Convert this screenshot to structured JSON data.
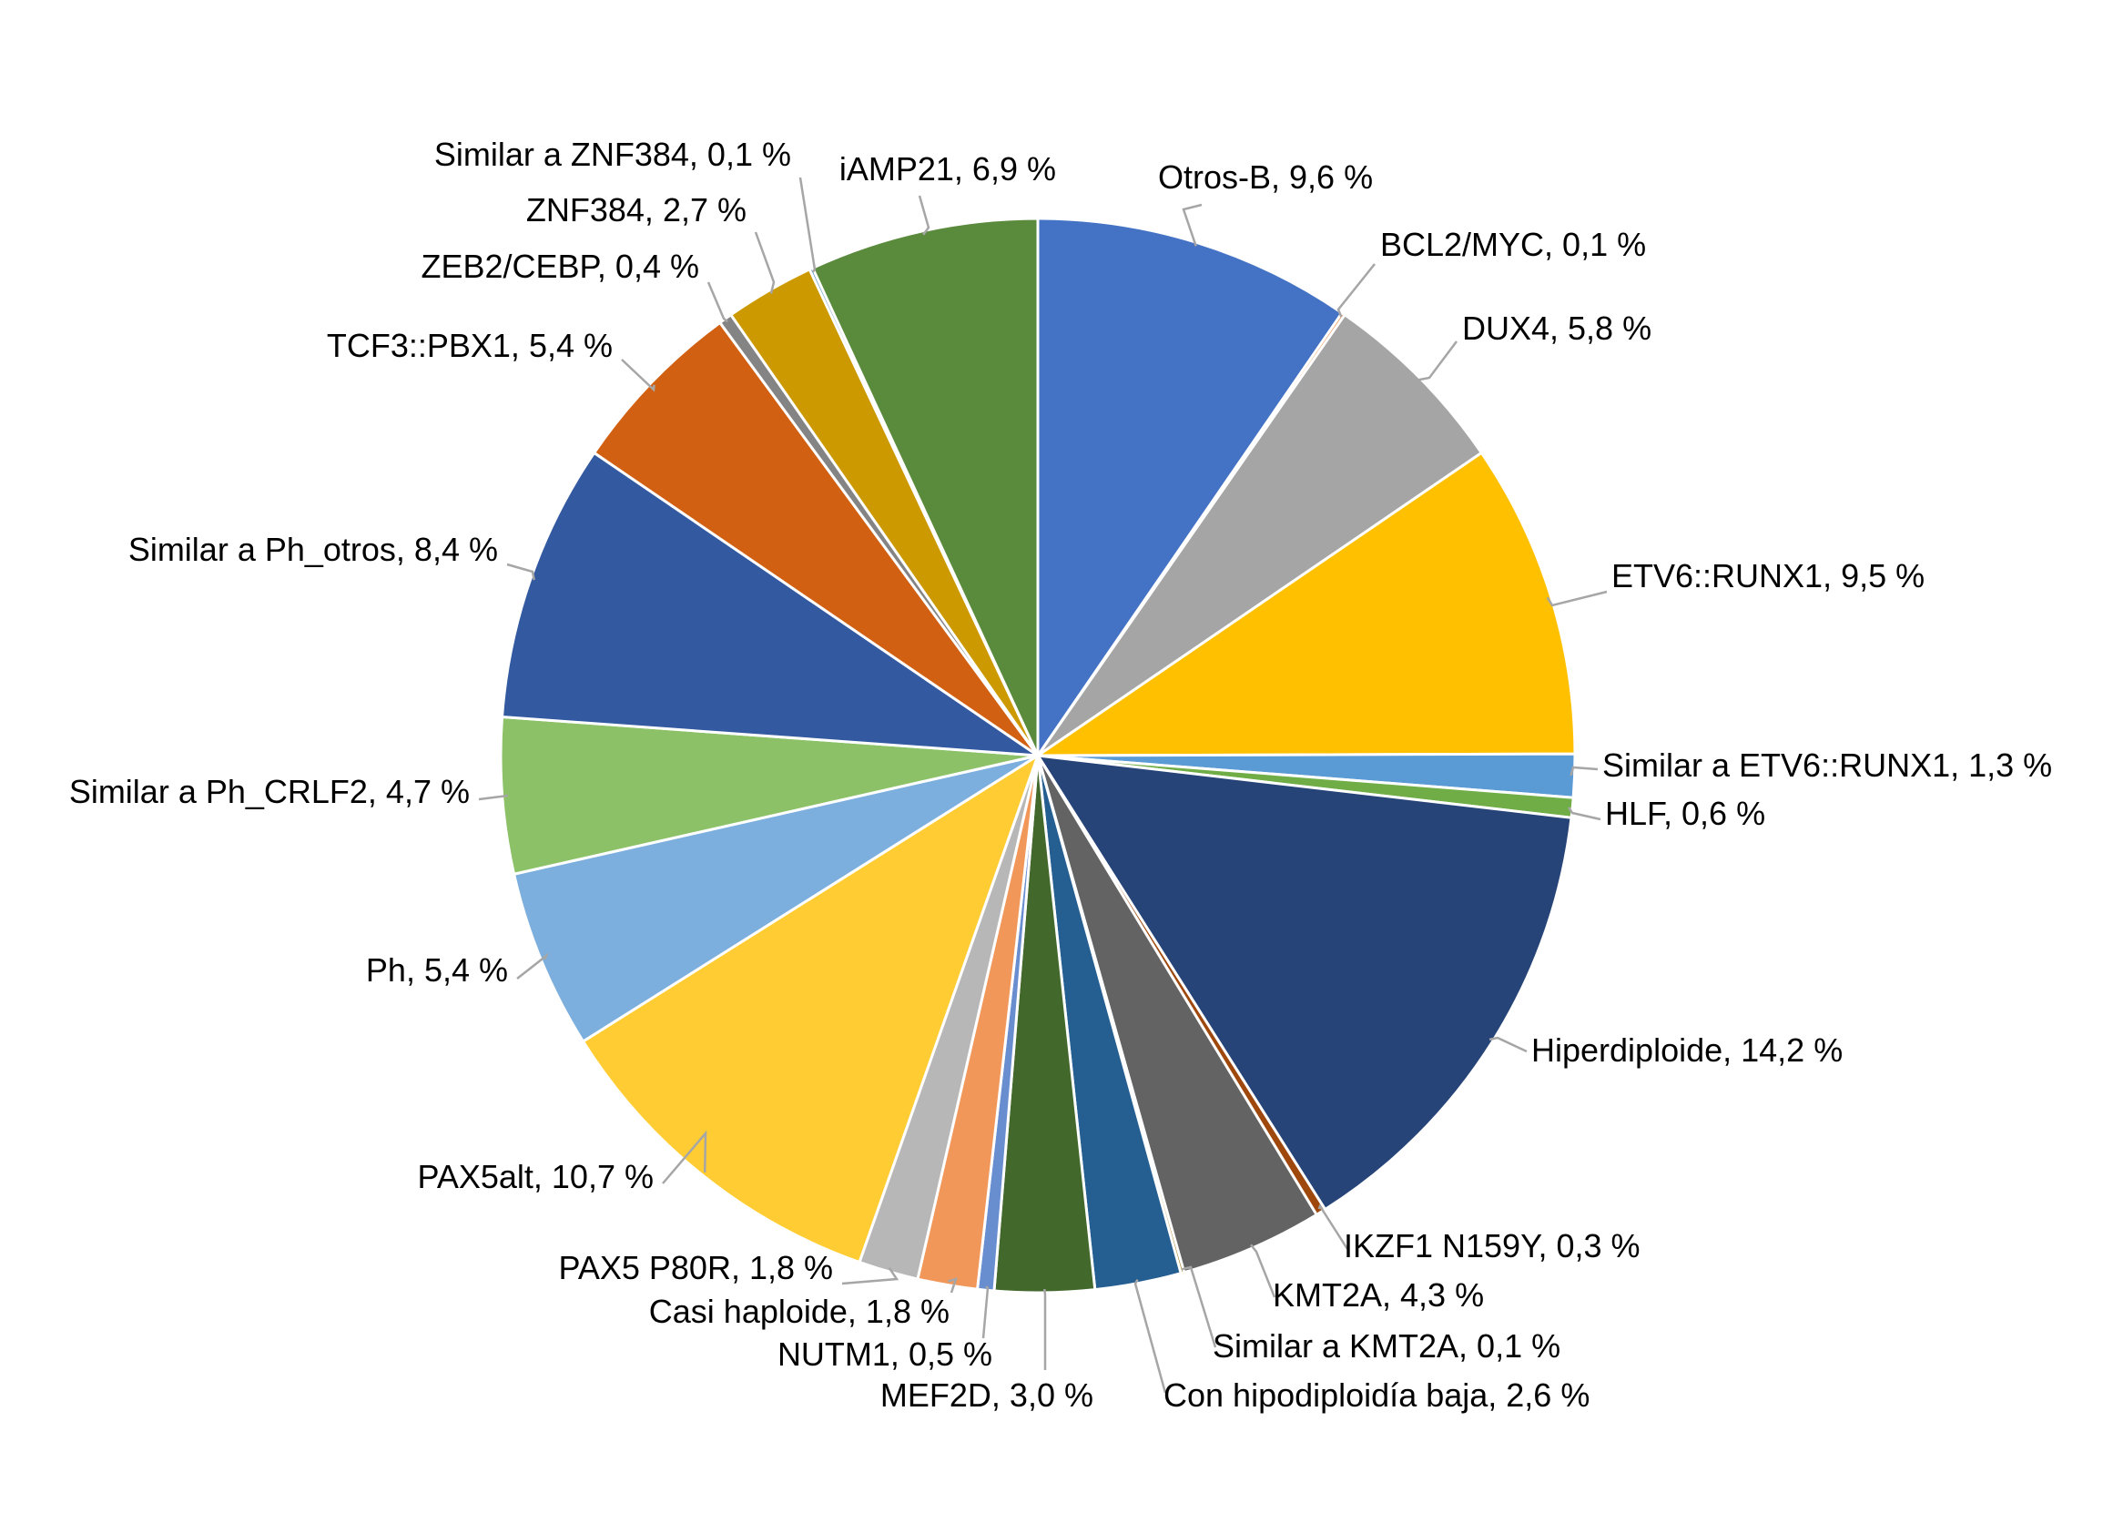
{
  "chart_data": {
    "type": "pie",
    "title": "",
    "start_angle_deg": 0,
    "direction": "clockwise",
    "slices": [
      {
        "label": "Otros-B, 9,6 %",
        "value": 9.6,
        "color": "#4472C4"
      },
      {
        "label": "BCL2/MYC, 0,1 %",
        "value": 0.1,
        "color": "#ED7D31"
      },
      {
        "label": "DUX4, 5,8 %",
        "value": 5.8,
        "color": "#A5A5A5"
      },
      {
        "label": "ETV6::RUNX1, 9,5 %",
        "value": 9.5,
        "color": "#FFC000"
      },
      {
        "label": "Similar a ETV6::RUNX1, 1,3 %",
        "value": 1.3,
        "color": "#5B9BD5"
      },
      {
        "label": "HLF, 0,6 %",
        "value": 0.6,
        "color": "#70AD47"
      },
      {
        "label": "Hiperdiploide, 14,2 %",
        "value": 14.2,
        "color": "#264478"
      },
      {
        "label": "IKZF1 N159Y, 0,3 %",
        "value": 0.3,
        "color": "#9E480E"
      },
      {
        "label": "KMT2A, 4,3 %",
        "value": 4.3,
        "color": "#636363"
      },
      {
        "label": "Similar a KMT2A, 0,1 %",
        "value": 0.1,
        "color": "#997300"
      },
      {
        "label": "Con hipodiploidía baja, 2,6 %",
        "value": 2.6,
        "color": "#255E91"
      },
      {
        "label": "MEF2D, 3,0 %",
        "value": 3.0,
        "color": "#43682B"
      },
      {
        "label": "NUTM1, 0,5 %",
        "value": 0.5,
        "color": "#698ED0"
      },
      {
        "label": "Casi haploide, 1,8 %",
        "value": 1.8,
        "color": "#F1975A"
      },
      {
        "label": "PAX5 P80R, 1,8 %",
        "value": 1.8,
        "color": "#B7B7B7"
      },
      {
        "label": "PAX5alt, 10,7 %",
        "value": 10.7,
        "color": "#FFCD33"
      },
      {
        "label": "Ph, 5,4 %",
        "value": 5.4,
        "color": "#7CAFDD"
      },
      {
        "label": "Similar a Ph_CRLF2, 4,7 %",
        "value": 4.7,
        "color": "#8CC168"
      },
      {
        "label": "Similar a Ph_otros, 8,4 %",
        "value": 8.4,
        "color": "#335AA1"
      },
      {
        "label": "TCF3::PBX1, 5,4 %",
        "value": 5.4,
        "color": "#D26012"
      },
      {
        "label": "ZEB2/CEBP, 0,4 %",
        "value": 0.4,
        "color": "#848484"
      },
      {
        "label": "ZNF384, 2,7 %",
        "value": 2.7,
        "color": "#CC9A00"
      },
      {
        "label": "Similar a ZNF384, 0,1 %",
        "value": 0.1,
        "color": "#2E75B6"
      },
      {
        "label": "iAMP21, 6,9 %",
        "value": 6.9,
        "color": "#5A8A3C"
      }
    ]
  }
}
